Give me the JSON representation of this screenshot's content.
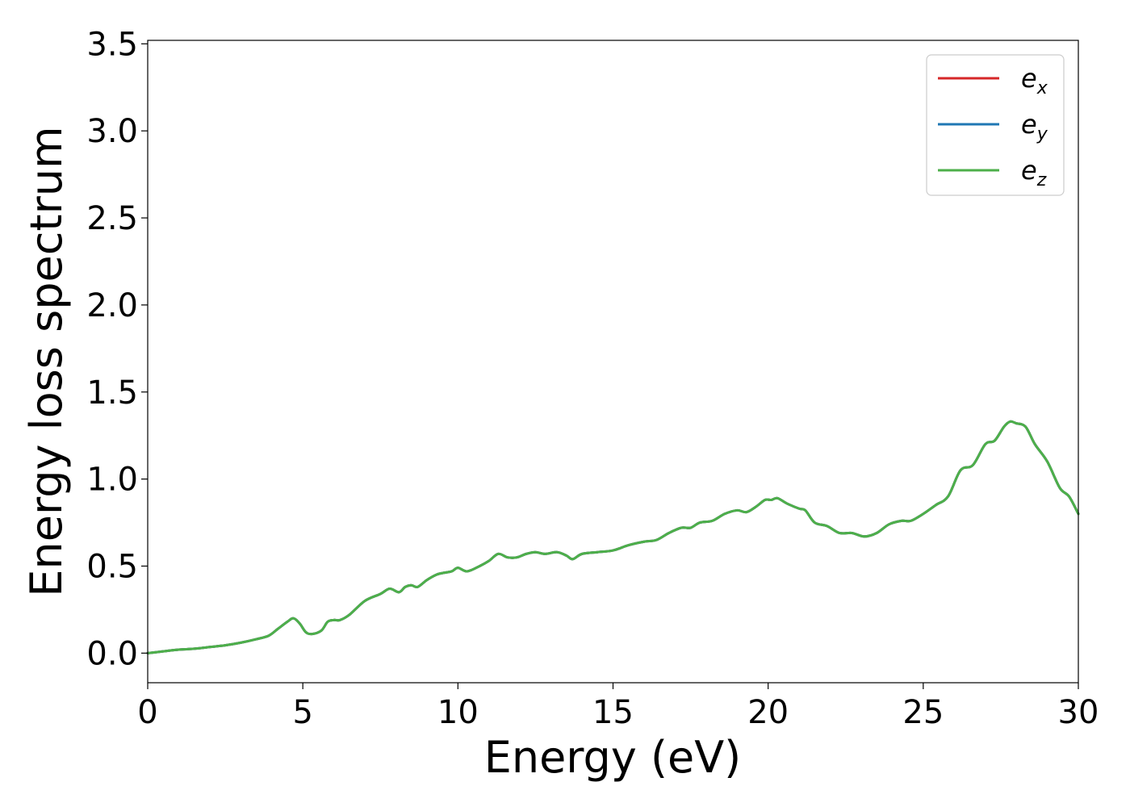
{
  "chart_data": {
    "type": "line",
    "title": "",
    "xlabel": "Energy (eV)",
    "ylabel": "Energy loss spectrum",
    "xlim": [
      0,
      30
    ],
    "ylim": [
      -0.17,
      3.52
    ],
    "xticks": [
      0,
      5,
      10,
      15,
      20,
      25,
      30
    ],
    "xtick_labels": [
      "0",
      "5",
      "10",
      "15",
      "20",
      "25",
      "30"
    ],
    "yticks": [
      0.0,
      0.5,
      1.0,
      1.5,
      2.0,
      2.5,
      3.0,
      3.5
    ],
    "ytick_labels": [
      "0.0",
      "0.5",
      "1.0",
      "1.5",
      "2.0",
      "2.5",
      "3.0",
      "3.5"
    ],
    "grid": false,
    "legend_position": "top-right",
    "legend": [
      {
        "base": "e",
        "sub": "x",
        "color": "#d62728"
      },
      {
        "base": "e",
        "sub": "y",
        "color": "#1f77b4"
      },
      {
        "base": "e",
        "sub": "z",
        "color": "#4daf4a"
      }
    ],
    "x": [
      0,
      0.5,
      1,
      1.5,
      2,
      2.5,
      3,
      3.5,
      3.9,
      4.2,
      4.5,
      4.7,
      4.9,
      5.1,
      5.3,
      5.6,
      5.8,
      6.0,
      6.2,
      6.5,
      7.0,
      7.5,
      7.8,
      8.1,
      8.3,
      8.5,
      8.7,
      9.0,
      9.3,
      9.5,
      9.8,
      10.0,
      10.3,
      10.7,
      11.0,
      11.3,
      11.6,
      11.9,
      12.2,
      12.5,
      12.8,
      13.2,
      13.5,
      13.7,
      14.0,
      14.5,
      15.0,
      15.5,
      16.0,
      16.4,
      16.8,
      17.2,
      17.5,
      17.8,
      18.2,
      18.6,
      19.0,
      19.3,
      19.6,
      19.9,
      20.1,
      20.3,
      20.6,
      21.0,
      21.2,
      21.5,
      21.9,
      22.3,
      22.7,
      23.1,
      23.5,
      23.9,
      24.3,
      24.6,
      25.0,
      25.4,
      25.8,
      26.2,
      26.6,
      27.0,
      27.3,
      27.6,
      27.8,
      28.0,
      28.3,
      28.6,
      29.0,
      29.4,
      29.7,
      30.0
    ],
    "series": [
      {
        "name": "e_x",
        "color": "#d62728",
        "values": [
          0.0,
          0.01,
          0.02,
          0.025,
          0.035,
          0.045,
          0.06,
          0.08,
          0.1,
          0.14,
          0.18,
          0.2,
          0.17,
          0.12,
          0.11,
          0.13,
          0.18,
          0.19,
          0.19,
          0.22,
          0.3,
          0.34,
          0.37,
          0.35,
          0.38,
          0.39,
          0.38,
          0.42,
          0.45,
          0.46,
          0.47,
          0.49,
          0.47,
          0.5,
          0.53,
          0.57,
          0.55,
          0.55,
          0.57,
          0.58,
          0.57,
          0.58,
          0.56,
          0.54,
          0.57,
          0.58,
          0.59,
          0.62,
          0.64,
          0.65,
          0.69,
          0.72,
          0.72,
          0.75,
          0.76,
          0.8,
          0.82,
          0.81,
          0.84,
          0.88,
          0.88,
          0.89,
          0.86,
          0.83,
          0.82,
          0.75,
          0.73,
          0.69,
          0.69,
          0.67,
          0.69,
          0.74,
          0.76,
          0.76,
          0.8,
          0.85,
          0.9,
          1.05,
          1.08,
          1.2,
          1.22,
          1.3,
          1.33,
          1.32,
          1.3,
          1.2,
          1.1,
          0.95,
          0.9,
          0.8
        ]
      },
      {
        "name": "e_y",
        "color": "#1f77b4",
        "values": [
          0.0,
          0.01,
          0.02,
          0.025,
          0.035,
          0.045,
          0.06,
          0.08,
          0.1,
          0.14,
          0.18,
          0.2,
          0.17,
          0.12,
          0.11,
          0.13,
          0.18,
          0.19,
          0.19,
          0.22,
          0.3,
          0.34,
          0.37,
          0.35,
          0.38,
          0.39,
          0.38,
          0.42,
          0.45,
          0.46,
          0.47,
          0.49,
          0.47,
          0.5,
          0.53,
          0.57,
          0.55,
          0.55,
          0.57,
          0.58,
          0.57,
          0.58,
          0.56,
          0.54,
          0.57,
          0.58,
          0.59,
          0.62,
          0.64,
          0.65,
          0.69,
          0.72,
          0.72,
          0.75,
          0.76,
          0.8,
          0.82,
          0.81,
          0.84,
          0.88,
          0.88,
          0.89,
          0.86,
          0.83,
          0.82,
          0.75,
          0.73,
          0.69,
          0.69,
          0.67,
          0.69,
          0.74,
          0.76,
          0.76,
          0.8,
          0.85,
          0.9,
          1.05,
          1.08,
          1.2,
          1.22,
          1.3,
          1.33,
          1.32,
          1.3,
          1.2,
          1.1,
          0.95,
          0.9,
          0.8
        ]
      },
      {
        "name": "e_z",
        "color": "#4daf4a",
        "values": [
          0.0,
          0.01,
          0.02,
          0.025,
          0.035,
          0.045,
          0.06,
          0.08,
          0.1,
          0.14,
          0.18,
          0.2,
          0.17,
          0.12,
          0.11,
          0.13,
          0.18,
          0.19,
          0.19,
          0.22,
          0.3,
          0.34,
          0.37,
          0.35,
          0.38,
          0.39,
          0.38,
          0.42,
          0.45,
          0.46,
          0.47,
          0.49,
          0.47,
          0.5,
          0.53,
          0.57,
          0.55,
          0.55,
          0.57,
          0.58,
          0.57,
          0.58,
          0.56,
          0.54,
          0.57,
          0.58,
          0.59,
          0.62,
          0.64,
          0.65,
          0.69,
          0.72,
          0.72,
          0.75,
          0.76,
          0.8,
          0.82,
          0.81,
          0.84,
          0.88,
          0.88,
          0.89,
          0.86,
          0.83,
          0.82,
          0.75,
          0.73,
          0.69,
          0.69,
          0.67,
          0.69,
          0.74,
          0.76,
          0.76,
          0.8,
          0.85,
          0.9,
          1.05,
          1.08,
          1.2,
          1.22,
          1.3,
          1.33,
          1.32,
          1.3,
          1.2,
          1.1,
          0.95,
          0.9,
          0.8
        ]
      }
    ]
  }
}
